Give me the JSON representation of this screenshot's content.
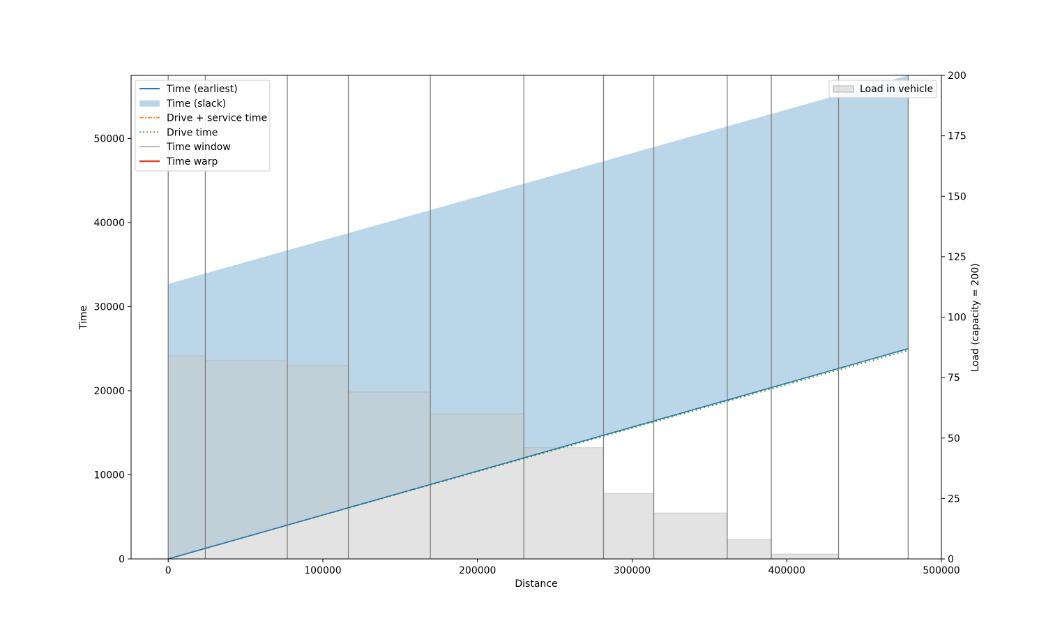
{
  "chart_data": {
    "type": "line",
    "xlabel": "Distance",
    "ylabel": "Time",
    "y2label": "Load (capacity = 200)",
    "xlim": [
      -24000,
      500000
    ],
    "ylim": [
      0,
      57500
    ],
    "y2lim": [
      0,
      200
    ],
    "x_ticks": [
      0,
      100000,
      200000,
      300000,
      400000,
      500000
    ],
    "y_ticks": [
      0,
      10000,
      20000,
      30000,
      40000,
      50000
    ],
    "y2_ticks": [
      0,
      25,
      50,
      75,
      100,
      125,
      150,
      175,
      200
    ],
    "grid": false,
    "legend_placement": "top-left",
    "legend2_placement": "top-right",
    "stops_distance": [
      0,
      24000,
      77000,
      116500,
      169500,
      230000,
      281500,
      314000,
      361500,
      390000,
      433500,
      478500
    ],
    "series": [
      {
        "name": "Time (earliest)",
        "kind": "line",
        "color": "#1f77b4",
        "x": [
          0,
          478500
        ],
        "y": [
          0,
          25000
        ]
      },
      {
        "name": "Time (slack)",
        "kind": "band",
        "color": "#1f77b4",
        "x": [
          0,
          478500
        ],
        "lower": [
          0,
          25000
        ],
        "upper": [
          32700,
          57500
        ]
      },
      {
        "name": "Drive + service time",
        "kind": "line",
        "color": "#ff7f0e",
        "x": [
          0,
          478500
        ],
        "y": [
          0,
          25000
        ]
      },
      {
        "name": "Drive time",
        "kind": "line",
        "color": "#2ca02c",
        "x": [
          0,
          478500
        ],
        "y": [
          0,
          24800
        ]
      },
      {
        "name": "Time window",
        "kind": "vlines",
        "color": "#808080",
        "x": [
          0,
          24000,
          77000,
          116500,
          169500,
          230000,
          281500,
          314000,
          361500,
          390000,
          433500,
          478500
        ]
      },
      {
        "name": "Time warp",
        "kind": "line",
        "color": "#e8412f",
        "x": [],
        "y": []
      },
      {
        "name": "Load in vehicle",
        "kind": "bar",
        "axis": "y2",
        "color": "#d9d9d9",
        "x_start": [
          0,
          24000,
          77000,
          116500,
          169500,
          230000,
          281500,
          314000,
          361500,
          390000,
          433500
        ],
        "x_end": [
          24000,
          77000,
          116500,
          169500,
          230000,
          281500,
          314000,
          361500,
          390000,
          433500,
          478500
        ],
        "values": [
          84,
          82,
          80,
          69,
          60,
          46,
          27,
          19,
          8,
          2,
          0
        ]
      }
    ]
  }
}
